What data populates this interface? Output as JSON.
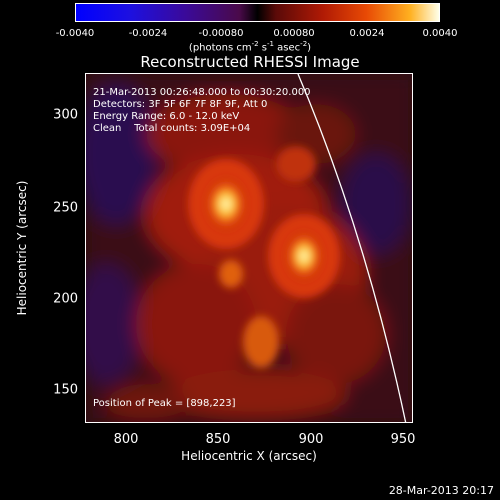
{
  "colorbar": {
    "ticks": [
      "-0.0040",
      "-0.0024",
      "-0.00080",
      "0.00080",
      "0.0024",
      "0.0040"
    ],
    "unit_main": "(photons cm",
    "unit_sup1": "-2",
    "unit_mid1": " s",
    "unit_sup2": "-1",
    "unit_mid2": " asec",
    "unit_sup3": "-2",
    "unit_end": ")"
  },
  "title": "Reconstructed RHESSI Image",
  "info": {
    "time": "21-Mar-2013 00:26:48.000 to 00:30:20.000",
    "detectors": "Detectors: 3F 5F 6F 7F 8F 9F, Att 0",
    "energy": "Energy Range: 6.0 - 12.0 keV",
    "clean": "Clean    Total counts: 3.09E+04",
    "peak": "Position of Peak = [898,223]"
  },
  "axes": {
    "xlabel": "Heliocentric X (arcsec)",
    "ylabel": "Heliocentric Y (arcsec)",
    "xticks": [
      "800",
      "850",
      "900",
      "950"
    ],
    "yticks": [
      "300",
      "250",
      "200",
      "150"
    ]
  },
  "stamp": "28-Mar-2013 20:17"
}
